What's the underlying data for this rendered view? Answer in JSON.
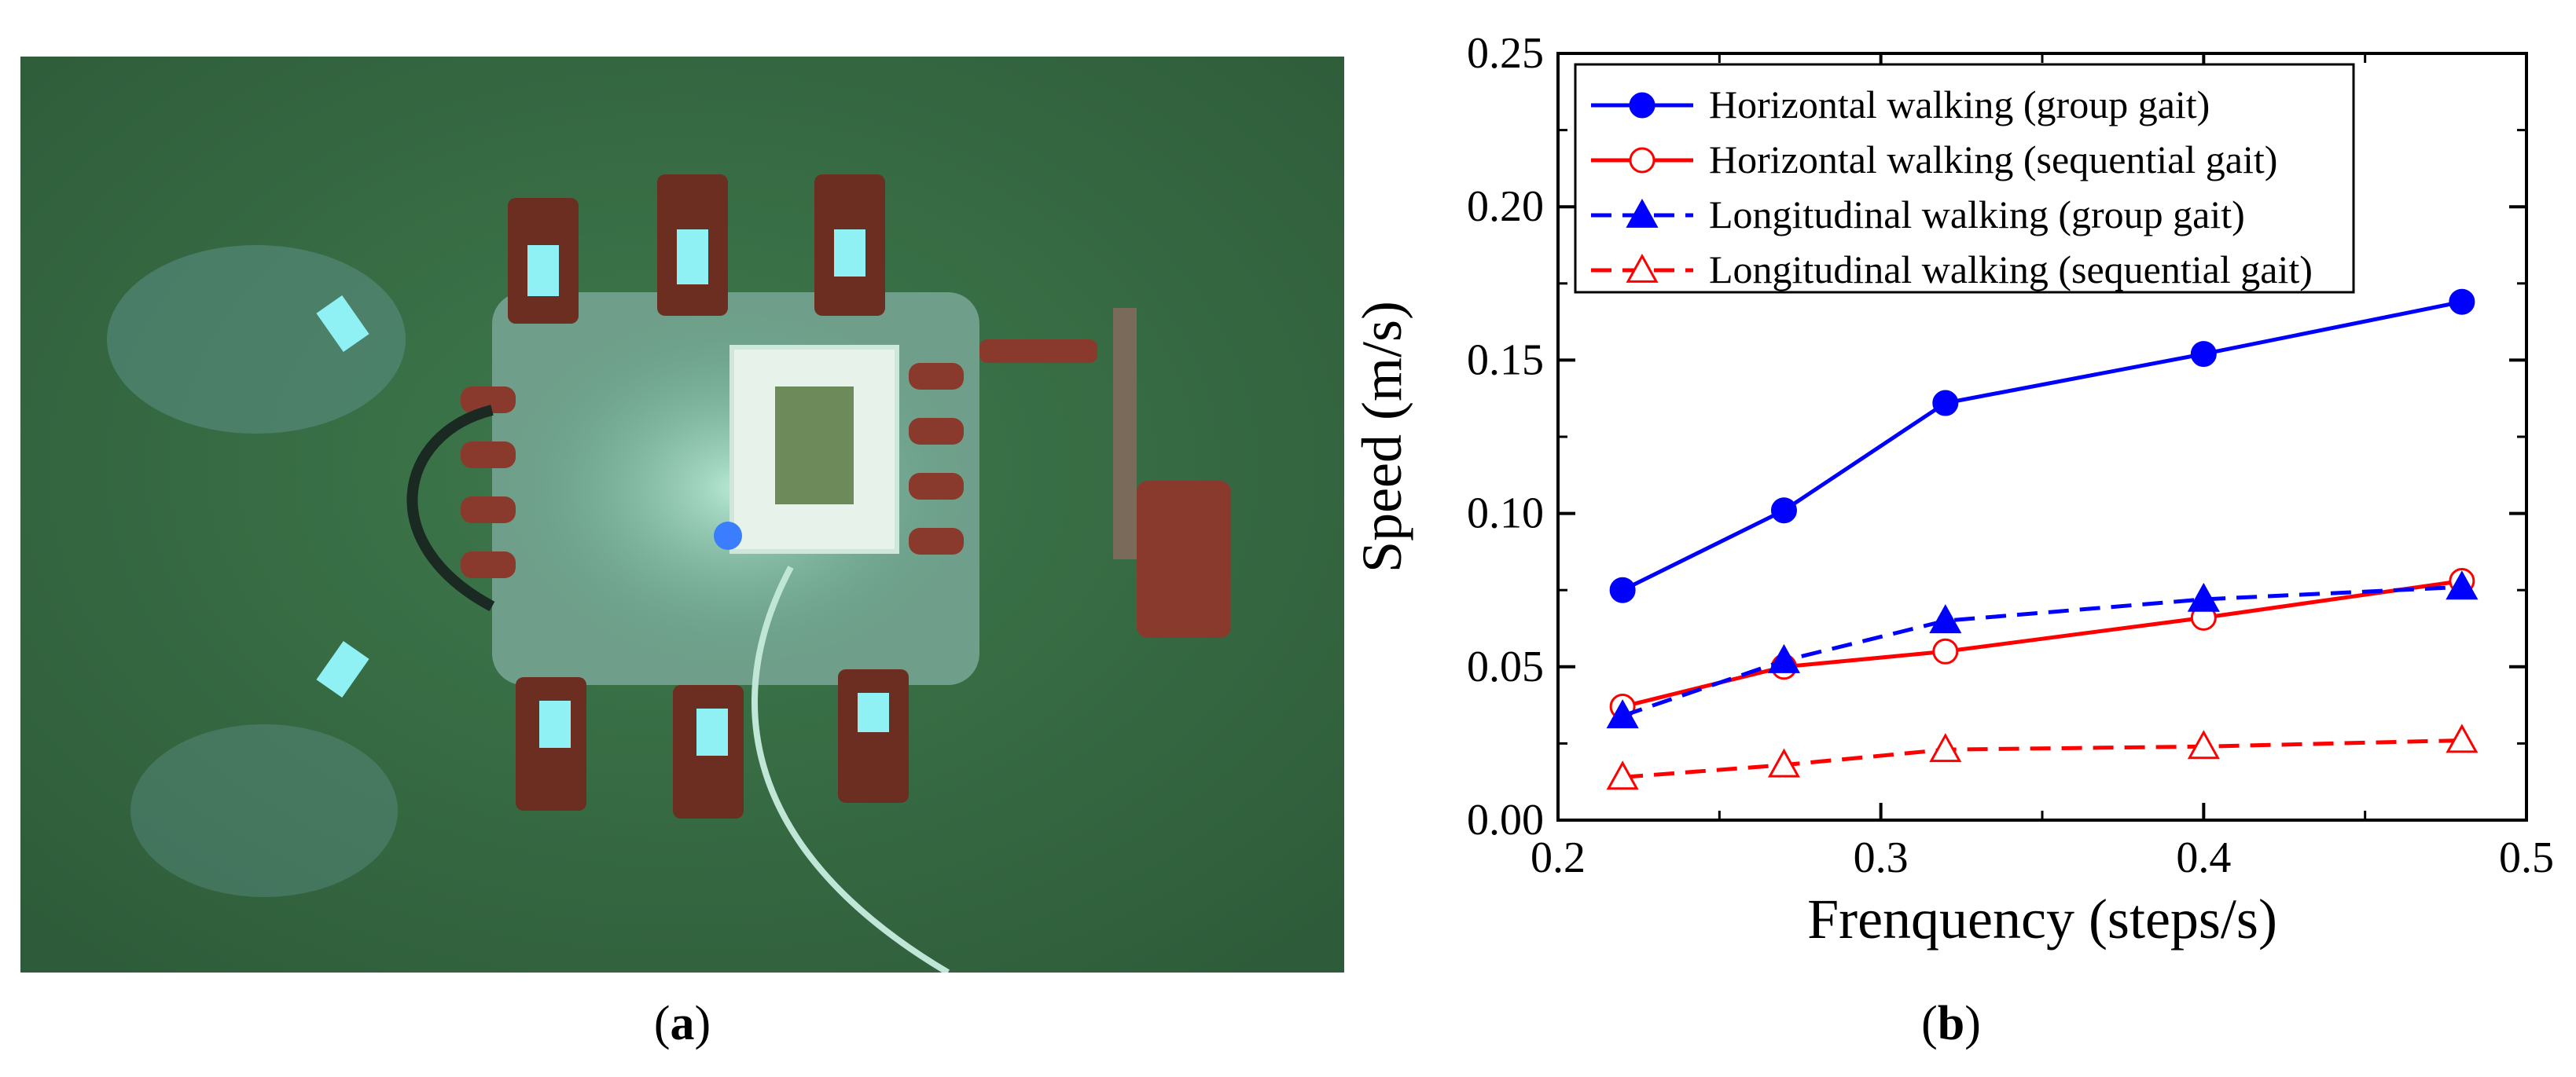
{
  "panels": {
    "a": {
      "open": "(",
      "letter": "a",
      "close": ")"
    },
    "b": {
      "open": "(",
      "letter": "b",
      "close": ")"
    }
  },
  "photo": {
    "description_icon": "hexapod-robot-photo"
  },
  "colors": {
    "blue": "#0000ff",
    "red": "#ff0000",
    "photo_bg": "#3d7048"
  },
  "chart_data": {
    "type": "line",
    "xlabel": "Frenquency (steps/s)",
    "ylabel": "Speed (m/s)",
    "xlim": [
      0.2,
      0.5
    ],
    "ylim": [
      0.0,
      0.25
    ],
    "x_ticks": [
      "0.2",
      "0.3",
      "0.4",
      "0.5"
    ],
    "y_ticks": [
      "0.00",
      "0.05",
      "0.10",
      "0.15",
      "0.20",
      "0.25"
    ],
    "x_tick_values": [
      0.2,
      0.3,
      0.4,
      0.5
    ],
    "y_tick_values": [
      0.0,
      0.05,
      0.1,
      0.15,
      0.2,
      0.25
    ],
    "legend_position": "top-left",
    "series": [
      {
        "name": "Horizontal walking (group gait)",
        "color": "#0000ff",
        "dash": false,
        "marker": "circle-filled",
        "x": [
          0.22,
          0.27,
          0.32,
          0.4,
          0.48
        ],
        "y": [
          0.075,
          0.101,
          0.136,
          0.152,
          0.169
        ]
      },
      {
        "name": "Horizontal walking (sequential gait)",
        "color": "#ff0000",
        "dash": false,
        "marker": "circle-open",
        "x": [
          0.22,
          0.27,
          0.32,
          0.4,
          0.48
        ],
        "y": [
          0.037,
          0.05,
          0.055,
          0.066,
          0.078
        ]
      },
      {
        "name": "Longitudinal walking (group gait)",
        "color": "#0000ff",
        "dash": true,
        "marker": "triangle-filled",
        "x": [
          0.22,
          0.27,
          0.32,
          0.4,
          0.48
        ],
        "y": [
          0.034,
          0.052,
          0.065,
          0.072,
          0.076
        ]
      },
      {
        "name": "Longitudinal walking (sequential gait)",
        "color": "#ff0000",
        "dash": true,
        "marker": "triangle-open",
        "x": [
          0.22,
          0.27,
          0.32,
          0.4,
          0.48
        ],
        "y": [
          0.014,
          0.018,
          0.023,
          0.024,
          0.026
        ]
      }
    ]
  }
}
